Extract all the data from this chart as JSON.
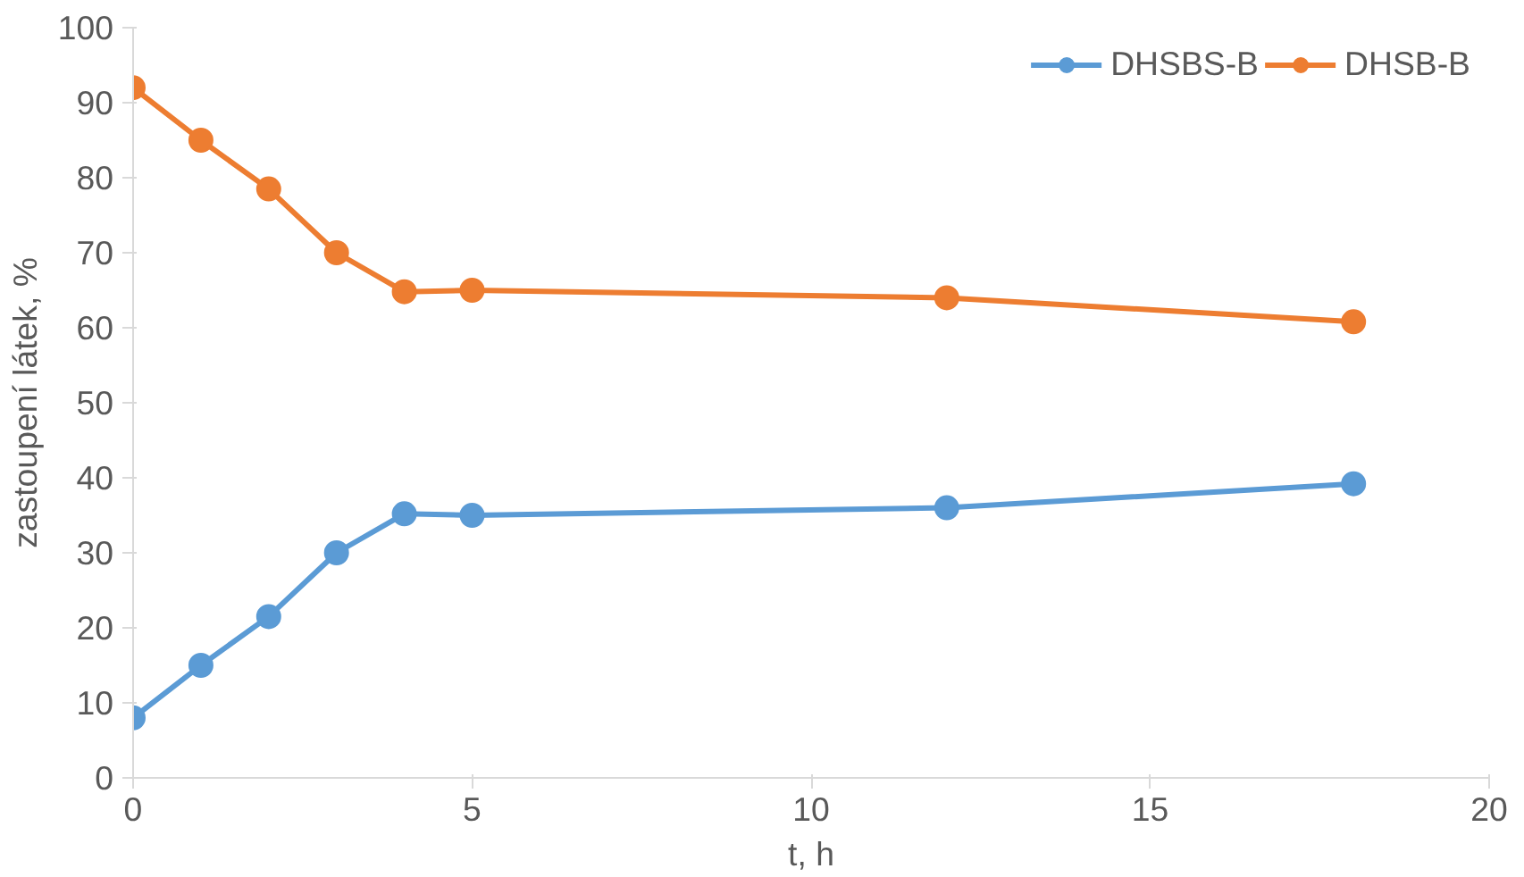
{
  "chart_data": {
    "type": "line",
    "xlabel": "t, h",
    "ylabel": "zastoupení látek, %",
    "x": [
      0,
      1,
      2,
      3,
      4,
      5,
      12,
      18
    ],
    "series": [
      {
        "name": "DHSBS-B",
        "color": "#5b9bd5",
        "values": [
          8,
          15,
          21.5,
          30,
          35.2,
          35,
          36,
          39.2
        ]
      },
      {
        "name": "DHSB-B",
        "color": "#ed7d31",
        "values": [
          92,
          85,
          78.5,
          70,
          64.8,
          65,
          64,
          60.8
        ]
      }
    ],
    "xlim": [
      0,
      20
    ],
    "xticks": [
      0,
      5,
      10,
      15,
      20
    ],
    "ylim": [
      0,
      100
    ],
    "yticks": [
      0,
      10,
      20,
      30,
      40,
      50,
      60,
      70,
      80,
      90,
      100
    ],
    "grid": false,
    "legend": "top right",
    "marker": "circle",
    "line_style": "solid"
  }
}
